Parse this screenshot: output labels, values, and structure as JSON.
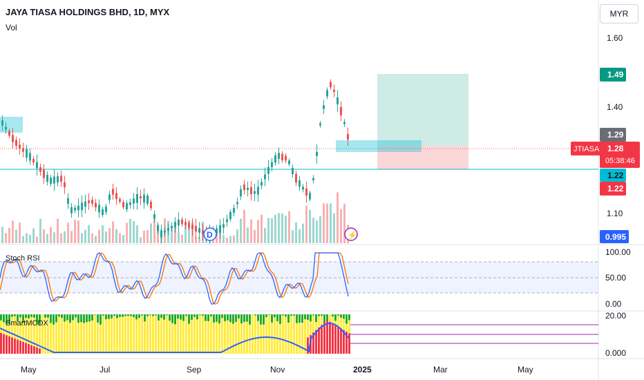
{
  "header": {
    "title": "JAYA TIASA HOLDINGS BHD, 1D, MYX",
    "volume_label": "Vol",
    "currency_button": "MYR"
  },
  "price_axis": {
    "ticks": [
      "1.60",
      "1.40",
      "1.10"
    ],
    "badges": {
      "target": "1.49",
      "resistance": "1.29",
      "symbol": "JTIASA",
      "last_price": "1.28",
      "countdown": "05:38:46",
      "support": "1.22",
      "stop": "1.22",
      "volume": "0.995"
    }
  },
  "indicators": {
    "stoch_rsi": {
      "label": "Stoch RSI",
      "ticks": [
        "100.00",
        "50.00",
        "0.00"
      ]
    },
    "smart_mcdx": {
      "label": "SmartMCDX",
      "ticks": [
        "20.00",
        "0.000"
      ]
    }
  },
  "time_axis": {
    "labels": [
      "May",
      "Jul",
      "Sep",
      "Nov",
      "2025",
      "Mar",
      "May"
    ]
  },
  "event_markers": {
    "dividend": "D",
    "earnings": "⚡"
  },
  "colors": {
    "up": "#26a69a",
    "down": "#ef5350",
    "target_badge": "#089981",
    "stop_badge": "#f23645",
    "support_badge": "#00bcd4",
    "volume_badge": "#2962ff",
    "stoch_k": "#2962ff",
    "stoch_d": "#ff6d00",
    "mcdx_green": "#22ab2a",
    "mcdx_yellow": "#ffeb3b",
    "mcdx_red": "#f23645",
    "mcdx_line": "#2962ff"
  },
  "icons": {
    "dividend": "dividend-circle-icon",
    "earnings": "lightning-icon"
  }
}
